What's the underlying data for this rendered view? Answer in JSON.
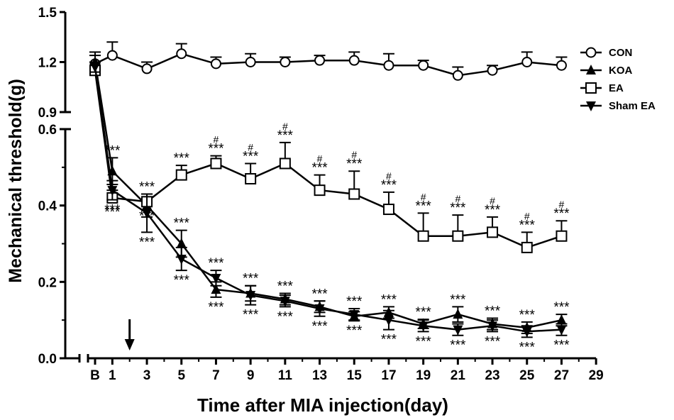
{
  "chart_data": {
    "type": "line",
    "title": "",
    "xlabel": "Time after MIA injection(day)",
    "ylabel": "Mechanical threshold(g)",
    "x_ticks": [
      "B",
      "1",
      "3",
      "5",
      "7",
      "9",
      "11",
      "13",
      "15",
      "17",
      "19",
      "21",
      "23",
      "25",
      "27",
      "29"
    ],
    "y_ticks_lower": [
      "0.0",
      "0.2",
      "0.4",
      "0.6"
    ],
    "y_ticks_upper": [
      "0.9",
      "1.2",
      "1.5"
    ],
    "ylim_lower": [
      0,
      0.6
    ],
    "ylim_upper": [
      0.9,
      1.5
    ],
    "axis_break": [
      0.6,
      0.9
    ],
    "arrow_day": 2,
    "sig_marker": "***",
    "hash_marker": "#",
    "series": [
      {
        "name": "CON",
        "marker": "open-circle",
        "days": [
          0,
          1,
          3,
          5,
          7,
          9,
          11,
          13,
          15,
          17,
          19,
          21,
          23,
          25,
          27
        ],
        "values": [
          1.19,
          1.24,
          1.16,
          1.25,
          1.19,
          1.2,
          1.2,
          1.21,
          1.21,
          1.18,
          1.18,
          1.12,
          1.15,
          1.2,
          1.18
        ],
        "errors": [
          0.07,
          0.08,
          0.04,
          0.06,
          0.04,
          0.05,
          0.03,
          0.03,
          0.05,
          0.07,
          0.03,
          0.05,
          0.03,
          0.06,
          0.05
        ]
      },
      {
        "name": "KOA",
        "marker": "filled-triangle-up",
        "days": [
          0,
          1,
          3,
          5,
          7,
          9,
          11,
          13,
          15,
          17,
          19,
          21,
          23,
          25,
          27
        ],
        "values": [
          1.2,
          0.49,
          0.4,
          0.3,
          0.18,
          0.17,
          0.155,
          0.135,
          0.11,
          0.12,
          0.09,
          0.115,
          0.09,
          0.08,
          0.1
        ],
        "errors": [
          0.04,
          0.035,
          0.03,
          0.035,
          0.02,
          0.02,
          0.015,
          0.015,
          0.012,
          0.015,
          0.012,
          0.02,
          0.015,
          0.015,
          0.015
        ],
        "sig": [
          "",
          "***",
          "***",
          "***",
          "***",
          "***",
          "***",
          "***",
          "***",
          "***",
          "***",
          "***",
          "***",
          "***",
          "***"
        ]
      },
      {
        "name": "EA",
        "marker": "open-square",
        "days": [
          0,
          1,
          3,
          5,
          7,
          9,
          11,
          13,
          15,
          17,
          19,
          21,
          23,
          25,
          27
        ],
        "values": [
          1.15,
          0.42,
          0.41,
          0.48,
          0.51,
          0.47,
          0.51,
          0.44,
          0.43,
          0.39,
          0.32,
          0.32,
          0.33,
          0.29,
          0.32
        ],
        "errors": [
          0.03,
          0.02,
          0.02,
          0.025,
          0.02,
          0.04,
          0.055,
          0.04,
          0.06,
          0.045,
          0.06,
          0.055,
          0.04,
          0.04,
          0.04
        ],
        "sig": [
          "",
          "***",
          "***",
          "***",
          "***",
          "***",
          "***",
          "***",
          "***",
          "***",
          "***",
          "***",
          "***",
          "***",
          "***"
        ],
        "hash": [
          "",
          "",
          "",
          "",
          "#",
          "#",
          "#",
          "#",
          "#",
          "#",
          "#",
          "#",
          "#",
          "#",
          "#"
        ]
      },
      {
        "name": "Sham EA",
        "marker": "filled-triangle-down",
        "days": [
          0,
          1,
          3,
          5,
          7,
          9,
          11,
          13,
          15,
          17,
          19,
          21,
          23,
          25,
          27
        ],
        "values": [
          1.17,
          0.44,
          0.38,
          0.26,
          0.21,
          0.165,
          0.15,
          0.13,
          0.115,
          0.1,
          0.085,
          0.075,
          0.085,
          0.07,
          0.075
        ],
        "errors": [
          0.03,
          0.025,
          0.05,
          0.03,
          0.02,
          0.025,
          0.015,
          0.02,
          0.015,
          0.025,
          0.015,
          0.015,
          0.015,
          0.015,
          0.015
        ],
        "sig": [
          "",
          "***",
          "***",
          "***",
          "***",
          "***",
          "***",
          "***",
          "***",
          "***",
          "***",
          "***",
          "***",
          "***",
          "***"
        ]
      }
    ],
    "legend_placement": "top-right"
  }
}
